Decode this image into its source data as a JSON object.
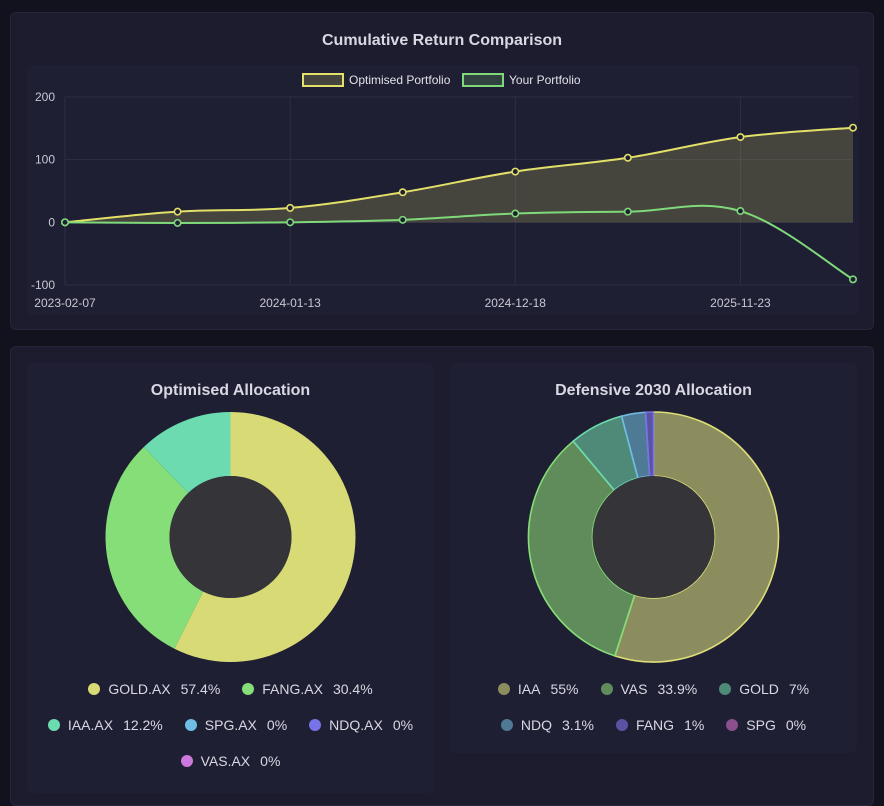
{
  "line_chart": {
    "title": "Cumulative Return Comparison"
  },
  "optimised_allocation": {
    "title": "Optimised Allocation"
  },
  "defensive_allocation": {
    "title": "Defensive 2030 Allocation"
  },
  "chart_data": [
    {
      "type": "line",
      "title": "Cumulative Return Comparison",
      "x": [
        "2023-02-07",
        "",
        "2024-01-13",
        "",
        "2024-12-18",
        "",
        "2025-11-23",
        ""
      ],
      "x_tick_labels": [
        "2023-02-07",
        "2024-01-13",
        "2024-12-18",
        "2025-11-23"
      ],
      "ylim": [
        -100,
        200
      ],
      "y_ticks": [
        200,
        100,
        0,
        -100
      ],
      "grid": true,
      "legend_position": "top",
      "area_fill": true,
      "series": [
        {
          "name": "Optimised Portfolio",
          "color": "#e3e06a",
          "values": [
            0,
            17,
            23,
            48,
            81,
            103,
            136,
            151
          ]
        },
        {
          "name": "Your Portfolio",
          "color": "#7fd97a",
          "values": [
            0,
            -1,
            0,
            4,
            14,
            17,
            18,
            -91
          ]
        }
      ]
    },
    {
      "type": "pie",
      "title": "Optimised Allocation",
      "donut": true,
      "legend_position": "bottom",
      "slices": [
        {
          "label": "GOLD.AX",
          "value": 57.4,
          "display": "57.4%",
          "color": "#d8da76"
        },
        {
          "label": "FANG.AX",
          "value": 30.4,
          "display": "30.4%",
          "color": "#86de78"
        },
        {
          "label": "IAA.AX",
          "value": 12.2,
          "display": "12.2%",
          "color": "#6cdbb0"
        },
        {
          "label": "SPG.AX",
          "value": 0,
          "display": "0%",
          "color": "#6fbde4"
        },
        {
          "label": "NDQ.AX",
          "value": 0,
          "display": "0%",
          "color": "#7873e6"
        },
        {
          "label": "VAS.AX",
          "value": 0,
          "display": "0%",
          "color": "#cc78dc"
        }
      ]
    },
    {
      "type": "pie",
      "title": "Defensive 2030 Allocation",
      "donut": true,
      "legend_position": "bottom",
      "slices": [
        {
          "label": "IAA",
          "value": 55,
          "display": "55%",
          "color": "#8b8d5e"
        },
        {
          "label": "VAS",
          "value": 33.9,
          "display": "33.9%",
          "color": "#5f8c5a"
        },
        {
          "label": "GOLD",
          "value": 7,
          "display": "7%",
          "color": "#4f8a78"
        },
        {
          "label": "NDQ",
          "value": 3.1,
          "display": "3.1%",
          "color": "#4f7a95"
        },
        {
          "label": "FANG",
          "value": 1,
          "display": "1%",
          "color": "#5a53a3"
        },
        {
          "label": "SPG",
          "value": 0,
          "display": "0%",
          "color": "#8a4f8c"
        }
      ]
    }
  ]
}
